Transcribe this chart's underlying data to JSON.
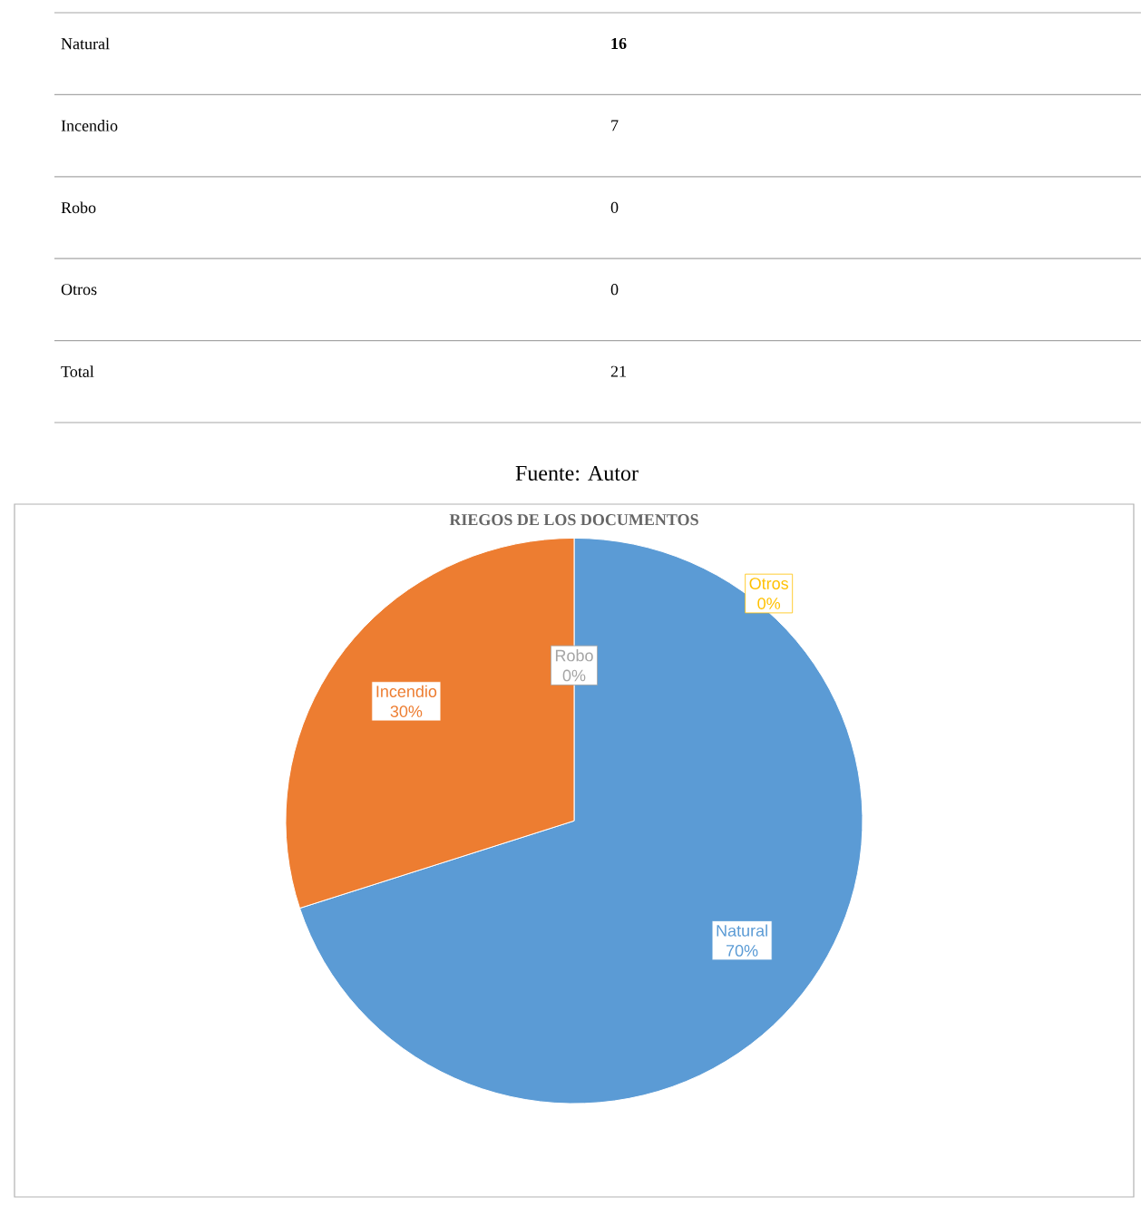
{
  "chart_data": [
    {
      "type": "other",
      "annotations": [
        "Natural",
        "**16**",
        "Incendio",
        "7",
        "Robo",
        "0",
        "Otros",
        "0",
        "Total",
        "21",
        "Fuente: Autor"
      ]
    },
    {
      "type": "pie",
      "title": "RIEGOS DE LOS DOCUMENTOS",
      "categories": [
        "Natural",
        "Incendio",
        "Robo",
        "Otros"
      ],
      "values": [
        70,
        30,
        0,
        0
      ],
      "value_labels": [
        "70%",
        "30%",
        "0%",
        "0%"
      ],
      "colors": [
        "#5b9bd5",
        "#ed7d31",
        "#a5a5a5",
        "#ffc000"
      ]
    }
  ]
}
